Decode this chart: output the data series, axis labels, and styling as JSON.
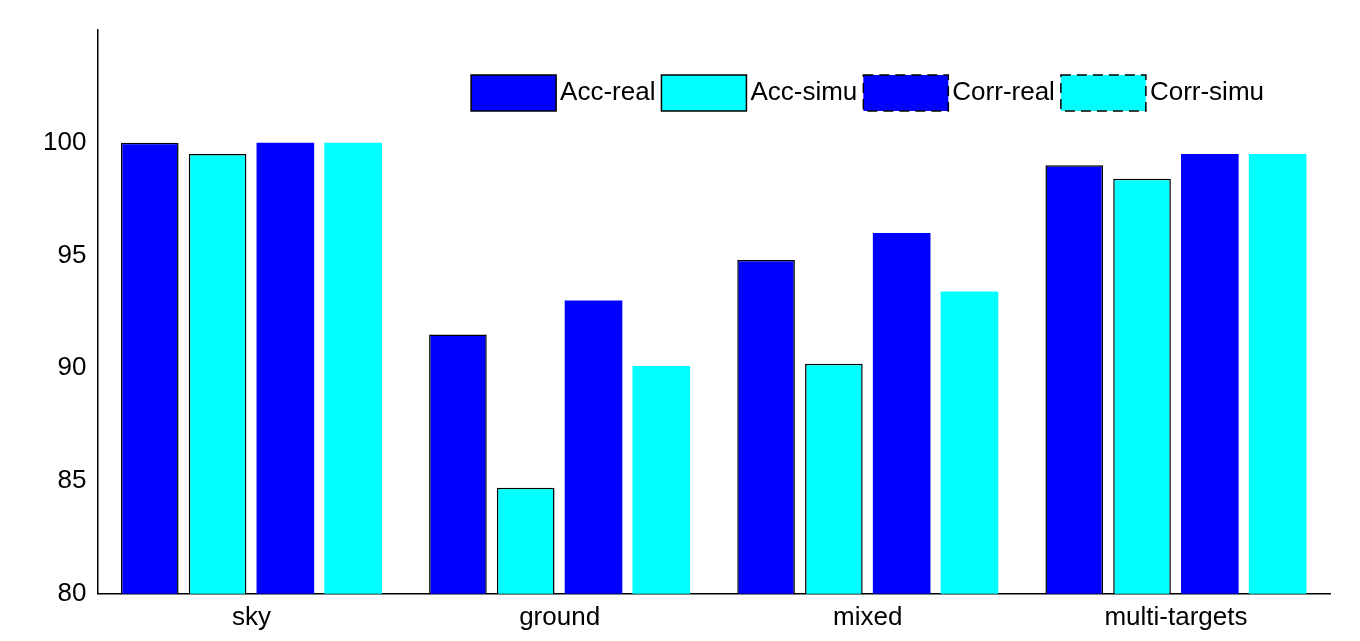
{
  "chart_data": {
    "type": "bar",
    "categories": [
      "sky",
      "ground",
      "mixed",
      "multi-targets"
    ],
    "series": [
      {
        "name": "Acc-real",
        "color": "#0000ff",
        "values": [
          100,
          91.5,
          94.8,
          99.0
        ]
      },
      {
        "name": "Acc-simu",
        "color": "#00ffff",
        "values": [
          99.5,
          84.7,
          90.2,
          98.4
        ]
      },
      {
        "name": "Corr-real",
        "color": "#0000ff",
        "values": [
          100,
          93.0,
          96.0,
          99.5
        ],
        "line_style": "dashed"
      },
      {
        "name": "Corr-simu",
        "color": "#00ffff",
        "values": [
          100,
          90.1,
          93.4,
          99.5
        ],
        "line_style": "dashed"
      }
    ],
    "ylim": [
      80,
      105
    ],
    "yticks": [
      80,
      85,
      90,
      95,
      100
    ],
    "grid": false,
    "legend": "top right"
  }
}
